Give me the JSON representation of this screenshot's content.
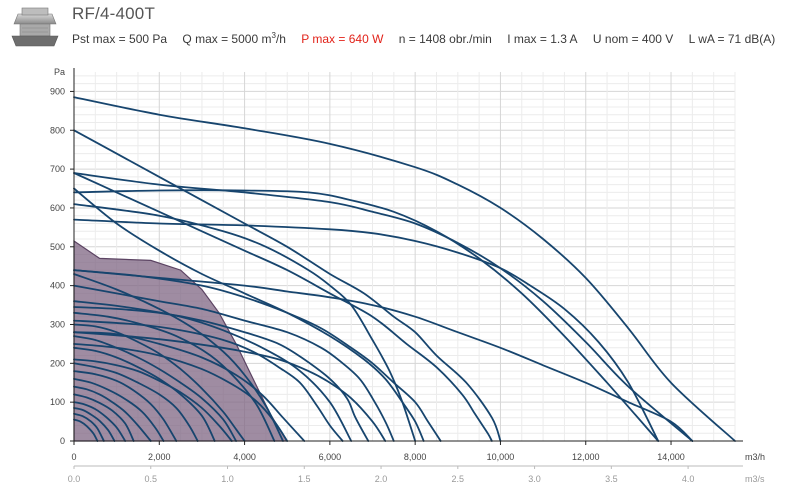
{
  "header": {
    "model": "RF/4-400T",
    "pst_max": "Pst max = 500 Pa",
    "q_max_prefix": "Q max = 5000 m",
    "q_max_sup": "3",
    "q_max_suffix": "/h",
    "p_max": "P max = 640 W",
    "n": "n = 1408 obr./min",
    "i_max": "I max = 1.3 A",
    "u_nom": "U nom = 400 V",
    "lwa": "L wA = 71 dB(A)",
    "p_max_color": "#e2231a"
  },
  "chart_data": {
    "type": "line",
    "title": "",
    "xlabel": "m3/h",
    "x2label": "m3/s",
    "ylabel": "Pa",
    "xlim": [
      0,
      15500
    ],
    "ylim": [
      0,
      950
    ],
    "x_ticks": [
      "0",
      "2,000",
      "4,000",
      "6,000",
      "8,000",
      "10,000",
      "12,000",
      "14,000"
    ],
    "x_tick_values": [
      0,
      2000,
      4000,
      6000,
      8000,
      10000,
      12000,
      14000
    ],
    "x2_ticks": [
      "0.0",
      "0.5",
      "1.0",
      "1.5",
      "2.0",
      "2.5",
      "3.0",
      "3.5",
      "4.0"
    ],
    "x2_tick_values": [
      0,
      0.5,
      1.0,
      1.5,
      2.0,
      2.5,
      3.0,
      3.5,
      4.0
    ],
    "y_ticks": [
      "0",
      "100",
      "200",
      "300",
      "400",
      "500",
      "600",
      "700",
      "800",
      "900"
    ],
    "y_tick_values": [
      0,
      100,
      200,
      300,
      400,
      500,
      600,
      700,
      800,
      900
    ],
    "grid": true,
    "line_color": "#17456e",
    "highlight_color": "#7f6683",
    "highlight": {
      "name": "RF/4-400T",
      "x": [
        0,
        600,
        1800,
        2500,
        3000,
        3400,
        3800,
        4200,
        4600,
        4990
      ],
      "y": [
        515,
        470,
        465,
        440,
        390,
        330,
        250,
        160,
        70,
        0
      ]
    },
    "series": [
      {
        "x": [
          0,
          2000,
          4000,
          6000,
          8000,
          9000,
          10000,
          11000,
          12000,
          13000,
          14000,
          15500
        ],
        "y": [
          885,
          840,
          805,
          765,
          705,
          660,
          600,
          520,
          420,
          290,
          150,
          0
        ]
      },
      {
        "x": [
          0,
          2000,
          4000,
          6000,
          7000,
          8000,
          9000,
          10000,
          11000,
          12000,
          13000,
          14500
        ],
        "y": [
          690,
          660,
          640,
          615,
          590,
          560,
          510,
          445,
          360,
          255,
          140,
          0
        ]
      },
      {
        "x": [
          0,
          2000,
          4000,
          5500,
          6500,
          7500,
          8500,
          9500,
          10500,
          11500,
          12500,
          13700
        ],
        "y": [
          640,
          645,
          645,
          640,
          620,
          590,
          540,
          470,
          380,
          270,
          150,
          0
        ]
      },
      {
        "x": [
          0,
          2000,
          4000,
          6000,
          7000,
          8000,
          9000,
          10000,
          10700,
          11500,
          12300,
          13000,
          13700
        ],
        "y": [
          570,
          560,
          555,
          545,
          535,
          515,
          485,
          445,
          400,
          340,
          255,
          150,
          0
        ]
      },
      {
        "x": [
          0,
          2000,
          4000,
          5000,
          6000,
          7000,
          8000,
          9000,
          10000,
          11000,
          12000,
          13000,
          14000,
          14500
        ],
        "y": [
          440,
          420,
          400,
          385,
          370,
          350,
          320,
          280,
          240,
          195,
          150,
          100,
          50,
          0
        ]
      },
      {
        "x": [
          0,
          1000,
          2000,
          3000,
          4000,
          5000,
          6000,
          6800,
          7500,
          8000,
          8500,
          9200,
          9800,
          10000
        ],
        "y": [
          800,
          740,
          680,
          620,
          560,
          500,
          430,
          380,
          320,
          280,
          220,
          150,
          60,
          0
        ]
      },
      {
        "x": [
          0,
          1000,
          2000,
          3000,
          4000,
          5000,
          6000,
          7000,
          7800,
          8500,
          9100,
          9400,
          9700,
          9800
        ],
        "y": [
          690,
          640,
          590,
          540,
          490,
          440,
          380,
          320,
          250,
          190,
          120,
          70,
          20,
          0
        ]
      },
      {
        "x": [
          0,
          1000,
          2000,
          3000,
          4000,
          5000,
          6000,
          6800,
          7300,
          7700,
          8000,
          8200
        ],
        "y": [
          650,
          560,
          490,
          430,
          380,
          330,
          270,
          210,
          160,
          100,
          50,
          0
        ]
      },
      {
        "x": [
          0,
          2000,
          3500,
          4500,
          5500,
          6000,
          6500,
          7000,
          7400,
          7700,
          8000
        ],
        "y": [
          610,
          580,
          540,
          500,
          440,
          400,
          350,
          260,
          180,
          100,
          0
        ]
      },
      {
        "x": [
          0,
          1000,
          2000,
          3000,
          4000,
          5000,
          5800,
          6300,
          6700,
          7000,
          7300,
          7500
        ],
        "y": [
          400,
          380,
          360,
          340,
          310,
          280,
          240,
          200,
          160,
          110,
          50,
          0
        ]
      },
      {
        "x": [
          0,
          1000,
          2000,
          3000,
          4000,
          4800,
          5400,
          6000,
          6400,
          6600,
          6900
        ],
        "y": [
          345,
          340,
          330,
          310,
          280,
          250,
          210,
          160,
          110,
          60,
          0
        ]
      },
      {
        "x": [
          0,
          1500,
          2500,
          3500,
          4200,
          4800,
          5300,
          5700,
          6000,
          6300
        ],
        "y": [
          310,
          300,
          285,
          260,
          230,
          190,
          150,
          90,
          40,
          0
        ]
      },
      {
        "x": [
          0,
          1000,
          2000,
          3000,
          3800,
          4400,
          4900,
          5400
        ],
        "y": [
          280,
          275,
          250,
          215,
          170,
          120,
          60,
          0
        ]
      },
      {
        "x": [
          0,
          1000,
          2000,
          3000,
          3800,
          4300,
          4700,
          5000
        ],
        "y": [
          250,
          240,
          220,
          185,
          140,
          100,
          50,
          0
        ]
      },
      {
        "x": [
          0,
          1500,
          3000,
          4000,
          5000,
          5800,
          6500,
          7000,
          7500,
          8000,
          8300,
          8600
        ],
        "y": [
          440,
          425,
          400,
          370,
          330,
          290,
          240,
          200,
          150,
          100,
          50,
          0
        ]
      },
      {
        "x": [
          0,
          1000,
          2000,
          2800,
          3500,
          4000,
          4500,
          4900
        ],
        "y": [
          430,
          390,
          340,
          290,
          230,
          170,
          90,
          0
        ]
      },
      {
        "x": [
          0,
          500,
          1000,
          1500,
          2000,
          2500,
          3000,
          3500,
          3800,
          4000
        ],
        "y": [
          300,
          295,
          280,
          255,
          225,
          185,
          135,
          75,
          30,
          0
        ]
      },
      {
        "x": [
          0,
          500,
          1000,
          1500,
          2000,
          2500,
          3000,
          3500,
          3800
        ],
        "y": [
          270,
          260,
          240,
          215,
          185,
          150,
          110,
          55,
          0
        ]
      },
      {
        "x": [
          0,
          500,
          1000,
          1500,
          2000,
          2500,
          3000,
          3300
        ],
        "y": [
          240,
          232,
          215,
          190,
          160,
          120,
          65,
          0
        ]
      },
      {
        "x": [
          0,
          500,
          1000,
          1500,
          2000,
          2400,
          2700,
          2900
        ],
        "y": [
          200,
          190,
          175,
          150,
          120,
          85,
          40,
          0
        ]
      },
      {
        "x": [
          0,
          500,
          1000,
          1400,
          1800,
          2100,
          2400
        ],
        "y": [
          180,
          172,
          155,
          130,
          95,
          55,
          0
        ]
      },
      {
        "x": [
          0,
          400,
          800,
          1200,
          1600,
          1900,
          2100
        ],
        "y": [
          160,
          150,
          132,
          108,
          75,
          35,
          0
        ]
      },
      {
        "x": [
          0,
          300,
          600,
          900,
          1200,
          1500,
          1800
        ],
        "y": [
          140,
          133,
          120,
          100,
          75,
          40,
          0
        ]
      },
      {
        "x": [
          0,
          300,
          600,
          900,
          1200,
          1400
        ],
        "y": [
          120,
          112,
          98,
          78,
          45,
          0
        ]
      },
      {
        "x": [
          0,
          250,
          500,
          750,
          1000,
          1200
        ],
        "y": [
          100,
          94,
          82,
          62,
          35,
          0
        ]
      },
      {
        "x": [
          0,
          200,
          400,
          600,
          800,
          950
        ],
        "y": [
          85,
          80,
          68,
          52,
          28,
          0
        ]
      },
      {
        "x": [
          0,
          200,
          400,
          550,
          700
        ],
        "y": [
          70,
          64,
          50,
          32,
          0
        ]
      },
      {
        "x": [
          0,
          150,
          300,
          450,
          550
        ],
        "y": [
          55,
          50,
          38,
          20,
          0
        ]
      },
      {
        "x": [
          0,
          500,
          1000,
          1500,
          2000,
          2500,
          3000,
          3400,
          3700
        ],
        "y": [
          210,
          205,
          195,
          180,
          155,
          125,
          85,
          40,
          0
        ]
      },
      {
        "x": [
          0,
          800,
          1600,
          2400,
          3200,
          3800,
          4300,
          4700
        ],
        "y": [
          330,
          320,
          300,
          270,
          220,
          160,
          90,
          0
        ]
      },
      {
        "x": [
          0,
          1000,
          2000,
          3000,
          4000,
          4800,
          5500,
          6000,
          6500,
          7000,
          7300
        ],
        "y": [
          280,
          272,
          262,
          248,
          230,
          210,
          180,
          150,
          110,
          50,
          0
        ]
      },
      {
        "x": [
          0,
          1200,
          2500,
          3500,
          4500,
          5300,
          6000,
          6500
        ],
        "y": [
          360,
          345,
          320,
          285,
          235,
          180,
          100,
          0
        ]
      }
    ]
  }
}
